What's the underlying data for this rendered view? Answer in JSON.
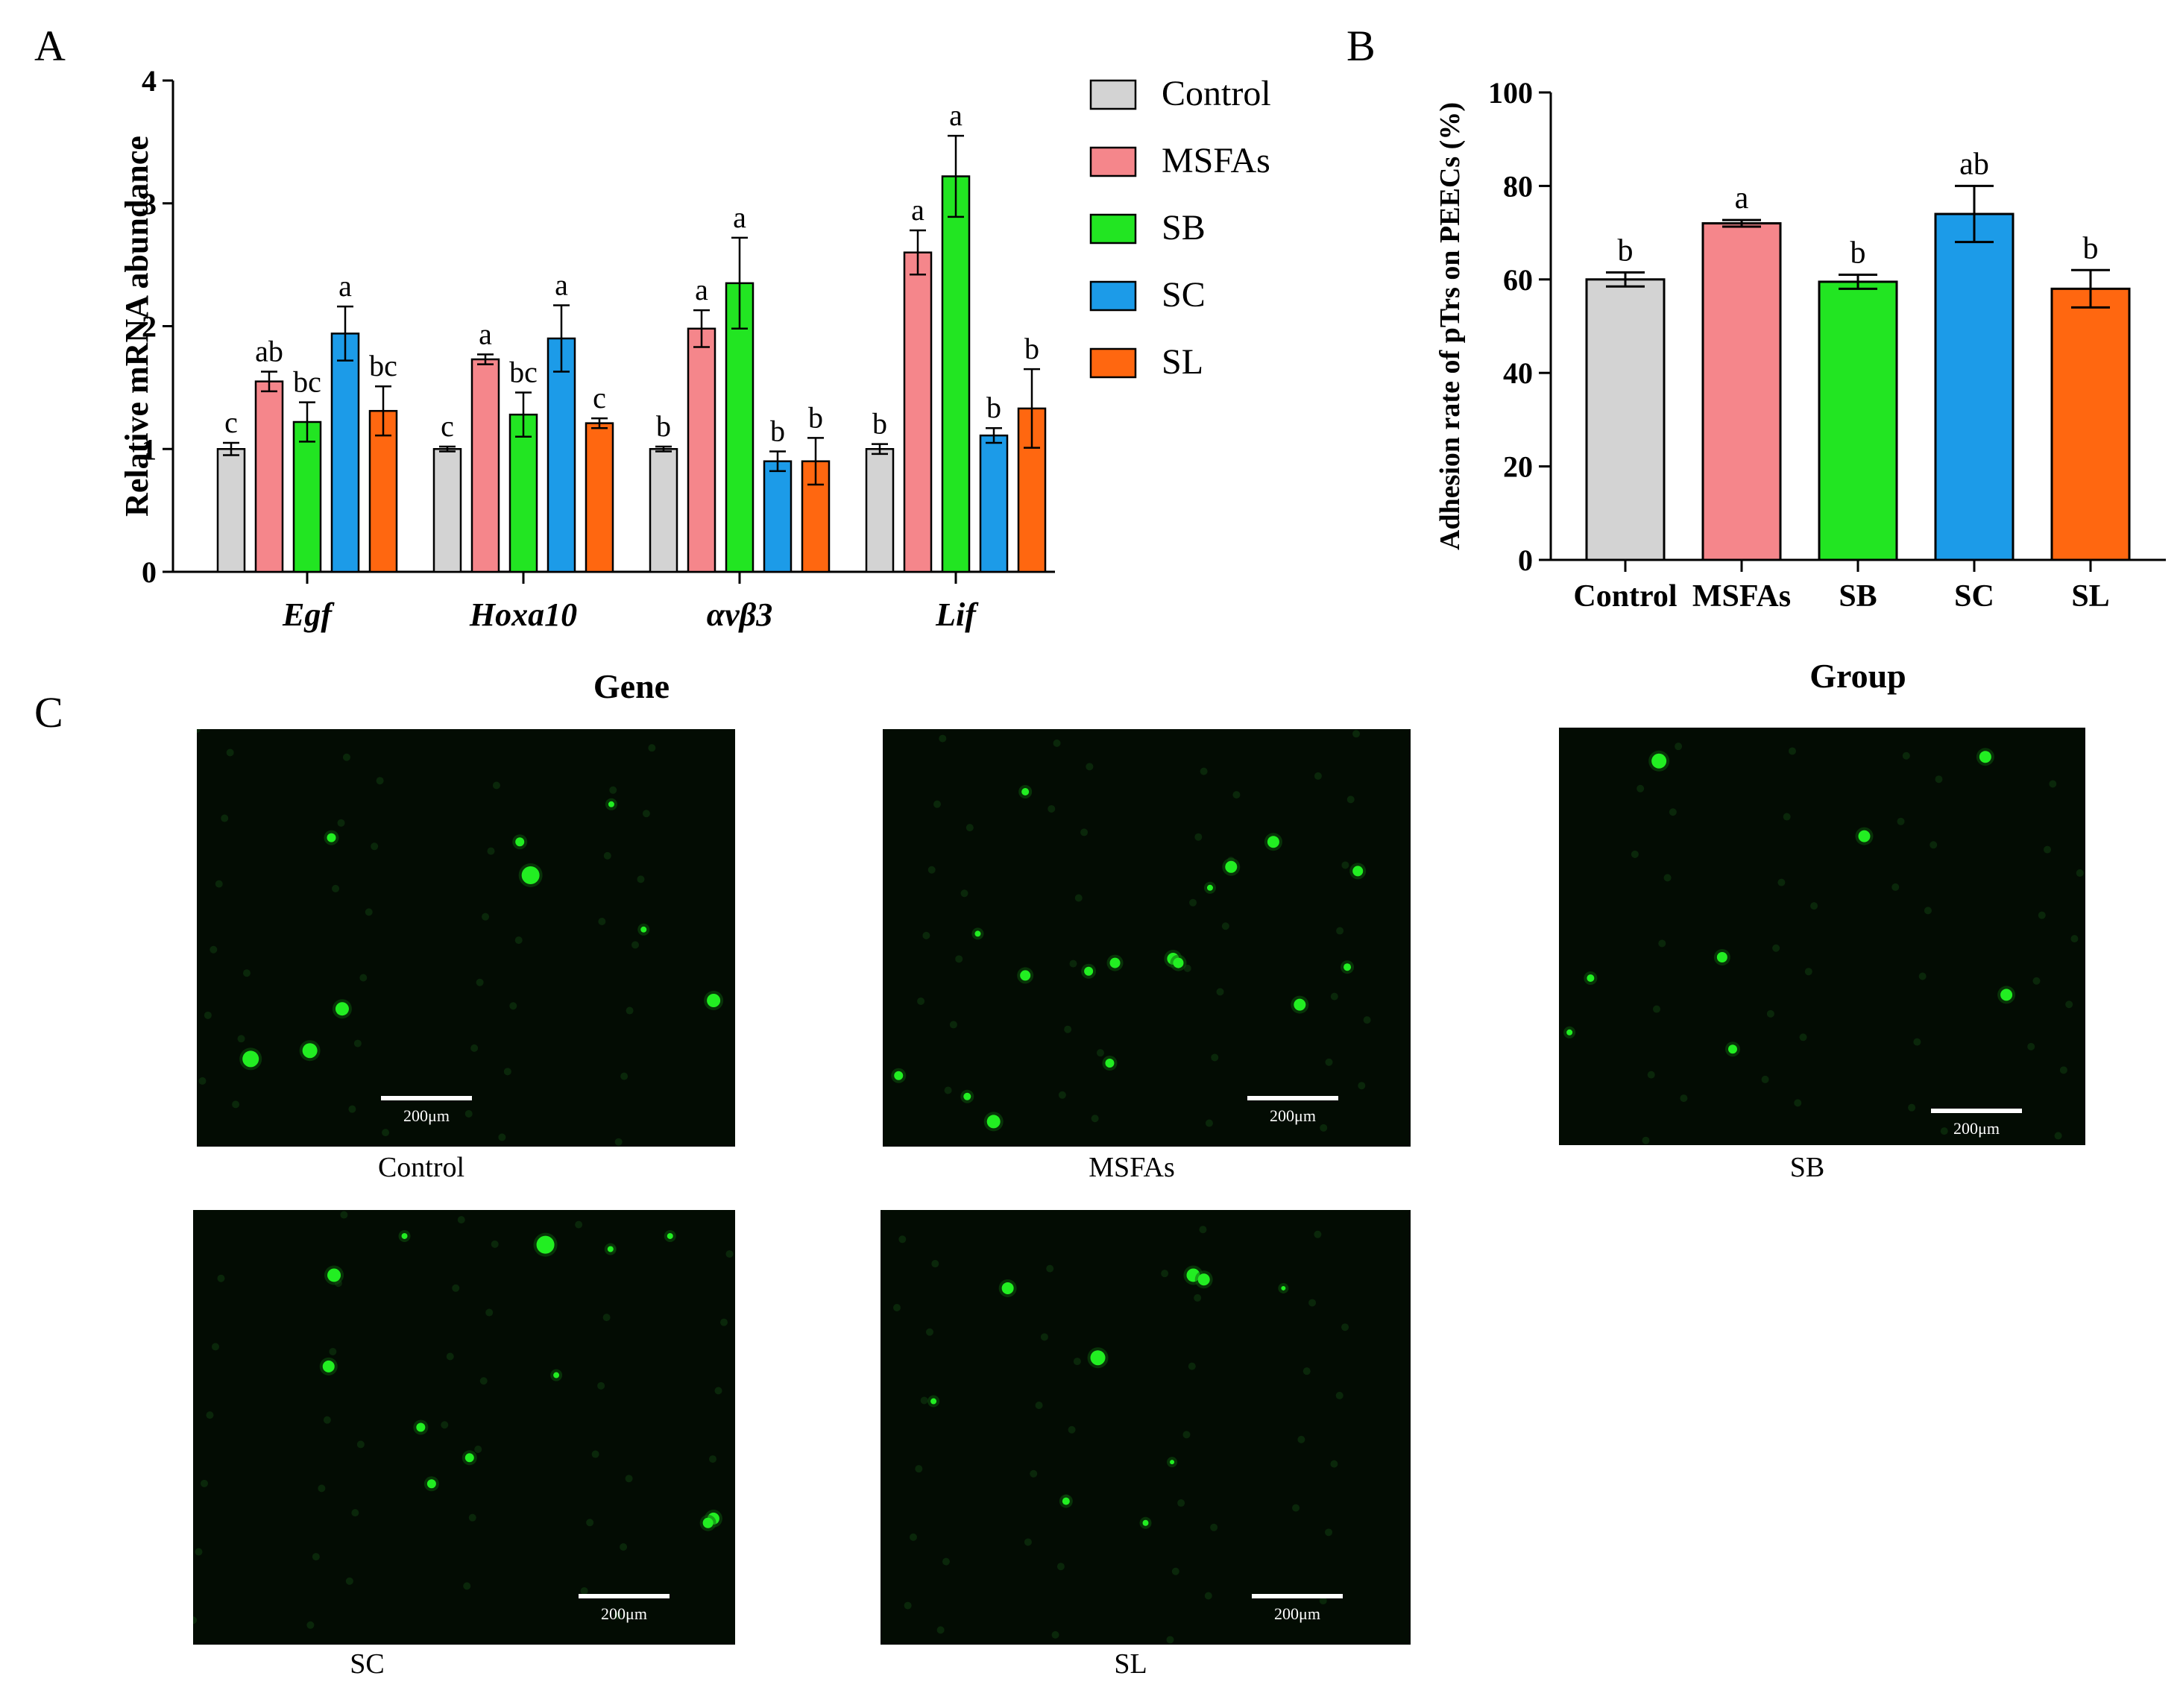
{
  "panel_labels": {
    "a": "A",
    "b": "B",
    "c": "C"
  },
  "colors": {
    "Control": "#d3d3d3",
    "MSFAs": "#f5868b",
    "SB": "#22e522",
    "SC": "#1c9be8",
    "SL": "#ff6710",
    "cell": "#22ee22",
    "micro_bg": "#030c03"
  },
  "chart_data": [
    {
      "id": "A",
      "type": "bar",
      "title": "",
      "xlabel": "Gene",
      "ylabel": "Relative mRNA abundance",
      "ylim": [
        0,
        4
      ],
      "yticks": [
        "0",
        "1",
        "2",
        "3",
        "4"
      ],
      "categories": [
        "Egf",
        "Hoxa10",
        "αvβ3",
        "Lif"
      ],
      "legend_position": "right",
      "series": [
        {
          "name": "Control",
          "values": [
            1.0,
            1.0,
            1.0,
            1.0
          ],
          "errors": [
            0.05,
            0.02,
            0.02,
            0.04
          ],
          "letters": [
            "c",
            "c",
            "b",
            "b"
          ]
        },
        {
          "name": "MSFAs",
          "values": [
            1.55,
            1.73,
            1.98,
            2.6
          ],
          "errors": [
            0.08,
            0.04,
            0.15,
            0.18
          ],
          "letters": [
            "ab",
            "a",
            "a",
            "a"
          ]
        },
        {
          "name": "SB",
          "values": [
            1.22,
            1.28,
            2.35,
            3.22
          ],
          "errors": [
            0.16,
            0.18,
            0.37,
            0.33
          ],
          "letters": [
            "bc",
            "bc",
            "a",
            "a"
          ]
        },
        {
          "name": "SC",
          "values": [
            1.94,
            1.9,
            0.9,
            1.11
          ],
          "errors": [
            0.22,
            0.27,
            0.08,
            0.06
          ],
          "letters": [
            "a",
            "a",
            "b",
            "b"
          ]
        },
        {
          "name": "SL",
          "values": [
            1.31,
            1.21,
            0.9,
            1.33
          ],
          "errors": [
            0.2,
            0.04,
            0.19,
            0.32
          ],
          "letters": [
            "bc",
            "c",
            "b",
            "b"
          ]
        }
      ]
    },
    {
      "id": "B",
      "type": "bar",
      "title": "",
      "xlabel": "Group",
      "ylabel": "Adhesion rate of pTrs on PEECs (%)",
      "ylim": [
        0,
        100
      ],
      "yticks": [
        "0",
        "20",
        "40",
        "60",
        "80",
        "100"
      ],
      "categories": [
        "Control",
        "MSFAs",
        "SB",
        "SC",
        "SL"
      ],
      "values": [
        60,
        72,
        59.5,
        74,
        58
      ],
      "errors": [
        1.5,
        0.7,
        1.5,
        6,
        4
      ],
      "letters": [
        "b",
        "a",
        "b",
        "ab",
        "b"
      ]
    }
  ],
  "micrographs": [
    {
      "caption": "Control",
      "scale": "200μm",
      "cells": [
        [
          0.62,
          0.35,
          12
        ],
        [
          0.6,
          0.27,
          6
        ],
        [
          0.25,
          0.26,
          6
        ],
        [
          0.27,
          0.67,
          9
        ],
        [
          0.21,
          0.77,
          10
        ],
        [
          0.1,
          0.79,
          11
        ],
        [
          0.96,
          0.65,
          9
        ],
        [
          0.83,
          0.48,
          4
        ],
        [
          0.77,
          0.18,
          4
        ]
      ]
    },
    {
      "caption": "MSFAs",
      "scale": "200μm",
      "cells": [
        [
          0.74,
          0.27,
          8
        ],
        [
          0.66,
          0.33,
          8
        ],
        [
          0.9,
          0.34,
          7
        ],
        [
          0.55,
          0.55,
          8
        ],
        [
          0.56,
          0.56,
          7
        ],
        [
          0.44,
          0.56,
          7
        ],
        [
          0.27,
          0.59,
          7
        ],
        [
          0.39,
          0.58,
          6
        ],
        [
          0.79,
          0.66,
          8
        ],
        [
          0.88,
          0.57,
          5
        ],
        [
          0.43,
          0.8,
          6
        ],
        [
          0.21,
          0.94,
          9
        ],
        [
          0.16,
          0.88,
          5
        ],
        [
          0.03,
          0.83,
          6
        ],
        [
          0.18,
          0.49,
          4
        ],
        [
          0.62,
          0.38,
          4
        ],
        [
          0.27,
          0.15,
          5
        ]
      ]
    },
    {
      "caption": "SB",
      "scale": "200μm",
      "cells": [
        [
          0.19,
          0.08,
          10
        ],
        [
          0.81,
          0.07,
          8
        ],
        [
          0.58,
          0.26,
          8
        ],
        [
          0.31,
          0.55,
          7
        ],
        [
          0.85,
          0.64,
          8
        ],
        [
          0.33,
          0.77,
          6
        ],
        [
          0.06,
          0.6,
          5
        ],
        [
          0.02,
          0.73,
          4
        ]
      ]
    },
    {
      "caption": "SC",
      "scale": "200μm",
      "cells": [
        [
          0.65,
          0.08,
          12
        ],
        [
          0.26,
          0.15,
          9
        ],
        [
          0.25,
          0.36,
          8
        ],
        [
          0.42,
          0.5,
          6
        ],
        [
          0.51,
          0.57,
          6
        ],
        [
          0.44,
          0.63,
          6
        ],
        [
          0.96,
          0.71,
          8
        ],
        [
          0.95,
          0.72,
          7
        ],
        [
          0.67,
          0.38,
          4
        ],
        [
          0.39,
          0.06,
          4
        ],
        [
          0.88,
          0.06,
          4
        ],
        [
          0.77,
          0.09,
          4
        ]
      ]
    },
    {
      "caption": "SL",
      "scale": "200μm",
      "cells": [
        [
          0.24,
          0.18,
          8
        ],
        [
          0.59,
          0.15,
          9
        ],
        [
          0.61,
          0.16,
          8
        ],
        [
          0.41,
          0.34,
          10
        ],
        [
          0.35,
          0.67,
          5
        ],
        [
          0.5,
          0.72,
          4
        ],
        [
          0.76,
          0.18,
          3
        ],
        [
          0.1,
          0.44,
          4
        ],
        [
          0.55,
          0.58,
          3
        ]
      ]
    }
  ]
}
